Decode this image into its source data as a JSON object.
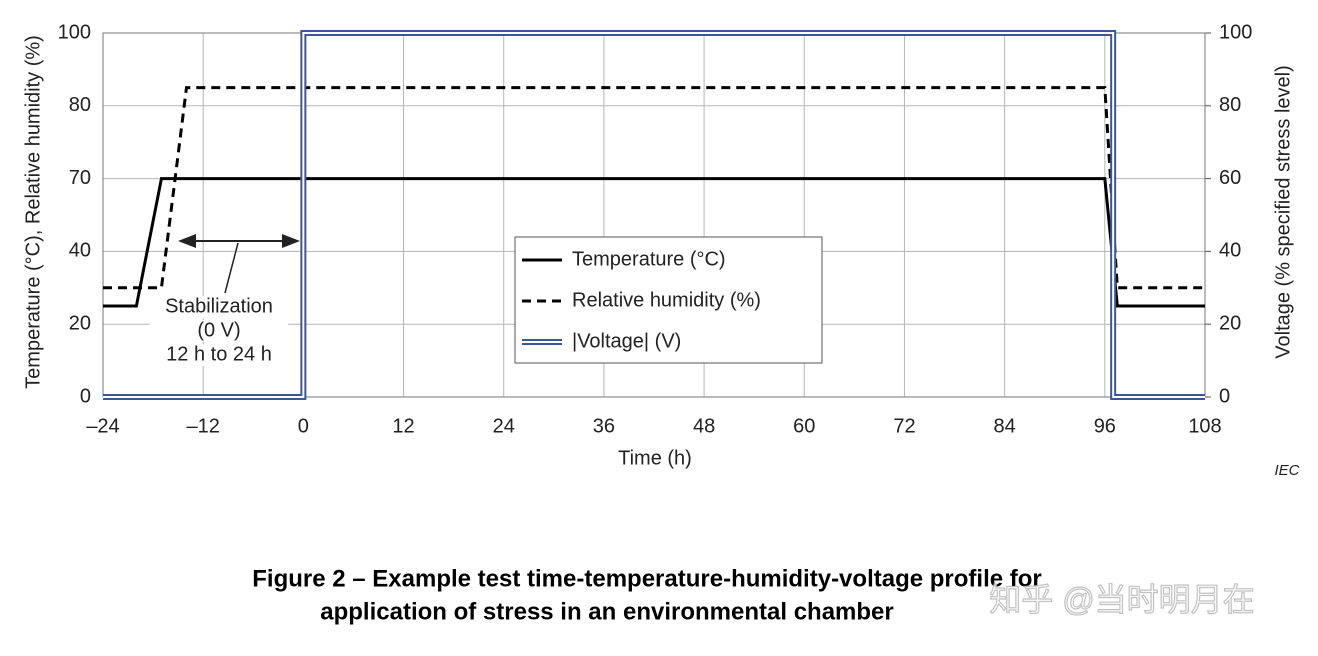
{
  "chart_data": {
    "type": "line",
    "xlabel": "Time  (h)",
    "ylabel": "Temperature  (°C), Relative humidity  (%)",
    "y2label": "Voltage  (% specified stress level)",
    "xlim": [
      -24,
      108
    ],
    "xticks": [
      {
        "value": -24,
        "label": "–24"
      },
      {
        "value": -12,
        "label": "–12"
      },
      0,
      12,
      24,
      36,
      48,
      60,
      72,
      84,
      96,
      108
    ],
    "ylim": [
      0,
      100
    ],
    "yticks": [
      0,
      20,
      40,
      70,
      80,
      100
    ],
    "y2lim": [
      0,
      100
    ],
    "y2ticks": [
      0,
      20,
      40,
      60,
      80,
      100
    ],
    "grid": true,
    "series": [
      {
        "name": "Temperature  (°C)",
        "color": "#000000",
        "style": "solid",
        "x": [
          -24,
          -20,
          -17,
          96,
          97.5,
          108
        ],
        "values": [
          25,
          25,
          70,
          70,
          25,
          25
        ]
      },
      {
        "name": "Relative humidity  (%)",
        "color": "#000000",
        "style": "dashed",
        "x": [
          -24,
          -17,
          -14,
          96,
          97.5,
          108
        ],
        "values": [
          30,
          30,
          85,
          85,
          30,
          30
        ]
      },
      {
        "name": "|Voltage|  (V)",
        "color": "#3a5796",
        "style": "double",
        "axis": "y2",
        "x": [
          -24,
          0,
          0,
          97,
          97,
          108
        ],
        "values": [
          0,
          0,
          100,
          100,
          0,
          0
        ]
      }
    ],
    "annotation": [
      "Stabilization",
      "(0 V)",
      "12 h to 24 h"
    ],
    "source": "IEC",
    "caption": [
      "Figure 2 – Example test time-temperature-humidity-voltage profile for",
      "application of stress in an environmental chamber"
    ],
    "watermark": "知乎 @当时明月在"
  }
}
